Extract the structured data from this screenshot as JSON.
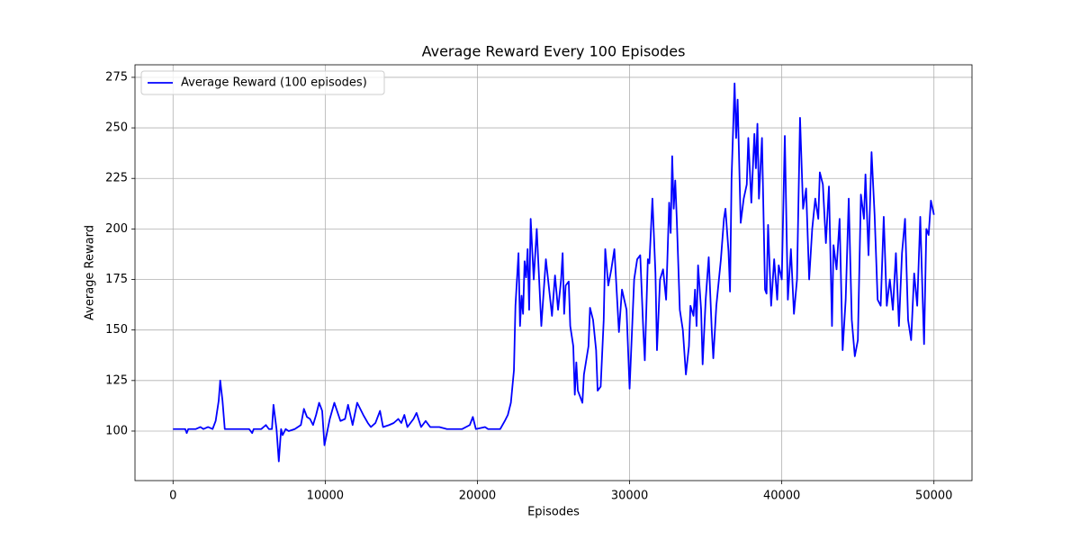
{
  "chart_data": {
    "type": "line",
    "title": "Average Reward Every 100 Episodes",
    "xlabel": "Episodes",
    "ylabel": "Average Reward",
    "xlim": [
      -2500,
      52500
    ],
    "ylim": [
      75.5,
      281.2
    ],
    "xticks": [
      0,
      10000,
      20000,
      30000,
      40000,
      50000
    ],
    "yticks": [
      100,
      125,
      150,
      175,
      200,
      225,
      250,
      275
    ],
    "grid": true,
    "legend": "upper left",
    "x": [
      0,
      800,
      900,
      1000,
      1500,
      1800,
      2000,
      2300,
      2600,
      2800,
      3000,
      3100,
      3250,
      3400,
      4000,
      5000,
      5200,
      5300,
      5800,
      6100,
      6300,
      6500,
      6600,
      6800,
      6950,
      7100,
      7200,
      7400,
      7600,
      8000,
      8400,
      8600,
      8800,
      9000,
      9200,
      9400,
      9600,
      9800,
      9950,
      10300,
      10600,
      11000,
      11300,
      11500,
      11800,
      12100,
      12500,
      12800,
      13000,
      13300,
      13600,
      13800,
      14200,
      14500,
      14800,
      15000,
      15200,
      15400,
      15800,
      16000,
      16300,
      16600,
      16900,
      17500,
      18000,
      19000,
      19500,
      19700,
      19900,
      20500,
      20700,
      21500,
      21800,
      22000,
      22200,
      22400,
      22500,
      22700,
      22800,
      22900,
      23000,
      23100,
      23200,
      23300,
      23400,
      23500,
      23700,
      23900,
      24200,
      24500,
      24900,
      25100,
      25300,
      25500,
      25600,
      25700,
      25800,
      26000,
      26100,
      26300,
      26400,
      26500,
      26600,
      26900,
      27000,
      27300,
      27400,
      27600,
      27800,
      27900,
      28100,
      28300,
      28400,
      28600,
      28800,
      29000,
      29300,
      29500,
      29800,
      30000,
      30300,
      30500,
      30700,
      30900,
      31000,
      31200,
      31300,
      31500,
      31700,
      31800,
      32000,
      32200,
      32400,
      32600,
      32700,
      32800,
      32900,
      33000,
      33100,
      33300,
      33500,
      33700,
      33900,
      34000,
      34200,
      34300,
      34400,
      34500,
      34700,
      34800,
      35000,
      35200,
      35400,
      35500,
      35700,
      36000,
      36200,
      36300,
      36500,
      36600,
      36700,
      36900,
      37000,
      37100,
      37300,
      37500,
      37700,
      37800,
      38000,
      38200,
      38300,
      38400,
      38500,
      38700,
      38900,
      39000,
      39100,
      39300,
      39500,
      39700,
      39800,
      40000,
      40200,
      40400,
      40600,
      40800,
      41000,
      41200,
      41400,
      41600,
      41800,
      42000,
      42200,
      42400,
      42500,
      42700,
      42900,
      43100,
      43300,
      43400,
      43600,
      43800,
      44000,
      44200,
      44400,
      44600,
      44800,
      45000,
      45200,
      45400,
      45500,
      45700,
      45900,
      46100,
      46300,
      46500,
      46700,
      46900,
      47100,
      47300,
      47500,
      47700,
      47900,
      48100,
      48300,
      48500,
      48700,
      48900,
      49100,
      49200,
      49350,
      49500,
      49650,
      49800,
      50000
    ],
    "series": [
      {
        "name": "Average Reward (100 episodes)",
        "color": "#0000ff",
        "values": [
          101,
          101,
          99,
          101,
          101,
          102,
          101,
          102,
          101,
          105,
          115,
          125,
          115,
          101,
          101,
          101,
          99,
          101,
          101,
          103,
          101,
          101,
          113,
          101,
          85,
          101,
          98,
          101,
          100,
          101,
          103,
          111,
          107,
          106,
          103,
          108,
          114,
          110,
          93,
          106,
          114,
          105,
          106,
          113,
          103,
          114,
          108,
          104,
          102,
          104,
          110,
          102,
          103,
          104,
          106,
          104,
          108,
          102,
          106,
          109,
          102,
          105,
          102,
          102,
          101,
          101,
          103,
          107,
          101,
          102,
          101,
          101,
          105,
          108,
          114,
          130,
          162,
          188,
          152,
          167,
          158,
          184,
          176,
          190,
          160,
          205,
          175,
          200,
          152,
          185,
          157,
          177,
          160,
          175,
          188,
          158,
          172,
          174,
          152,
          142,
          118,
          134,
          120,
          114,
          128,
          142,
          161,
          155,
          140,
          120,
          122,
          155,
          190,
          172,
          180,
          190,
          149,
          170,
          160,
          121,
          175,
          185,
          187,
          150,
          135,
          185,
          183,
          215,
          178,
          140,
          175,
          180,
          165,
          213,
          198,
          236,
          210,
          224,
          205,
          160,
          150,
          128,
          142,
          162,
          157,
          170,
          152,
          182,
          160,
          133,
          165,
          186,
          150,
          136,
          162,
          185,
          205,
          210,
          189,
          169,
          225,
          272,
          245,
          264,
          203,
          215,
          222,
          245,
          213,
          247,
          230,
          252,
          215,
          245,
          170,
          168,
          202,
          162,
          185,
          165,
          182,
          175,
          246,
          165,
          190,
          158,
          175,
          255,
          210,
          220,
          175,
          200,
          215,
          205,
          228,
          222,
          193,
          221,
          152,
          192,
          180,
          205,
          140,
          165,
          215,
          155,
          137,
          145,
          217,
          205,
          227,
          187,
          238,
          207,
          165,
          162,
          206,
          162,
          175,
          160,
          188,
          152,
          188,
          205,
          155,
          145,
          178,
          162,
          206,
          180,
          143,
          200,
          197,
          214,
          207
        ]
      }
    ]
  }
}
